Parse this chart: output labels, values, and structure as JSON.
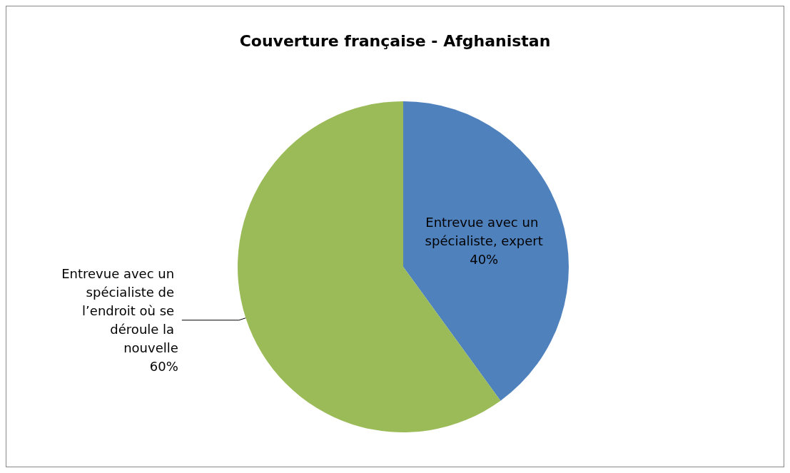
{
  "chart_data": {
    "type": "pie",
    "title": "Couverture française - Afghanistan",
    "categories": [
      "Entrevue avec un spécialiste, expert",
      "Entrevue avec un spécialiste de l’endroit où se déroule la nouvelle"
    ],
    "values": [
      40,
      60
    ],
    "colors": [
      "#4f81bd",
      "#9bbb59"
    ],
    "value_labels": [
      "40%",
      "60%"
    ],
    "legend": false
  }
}
